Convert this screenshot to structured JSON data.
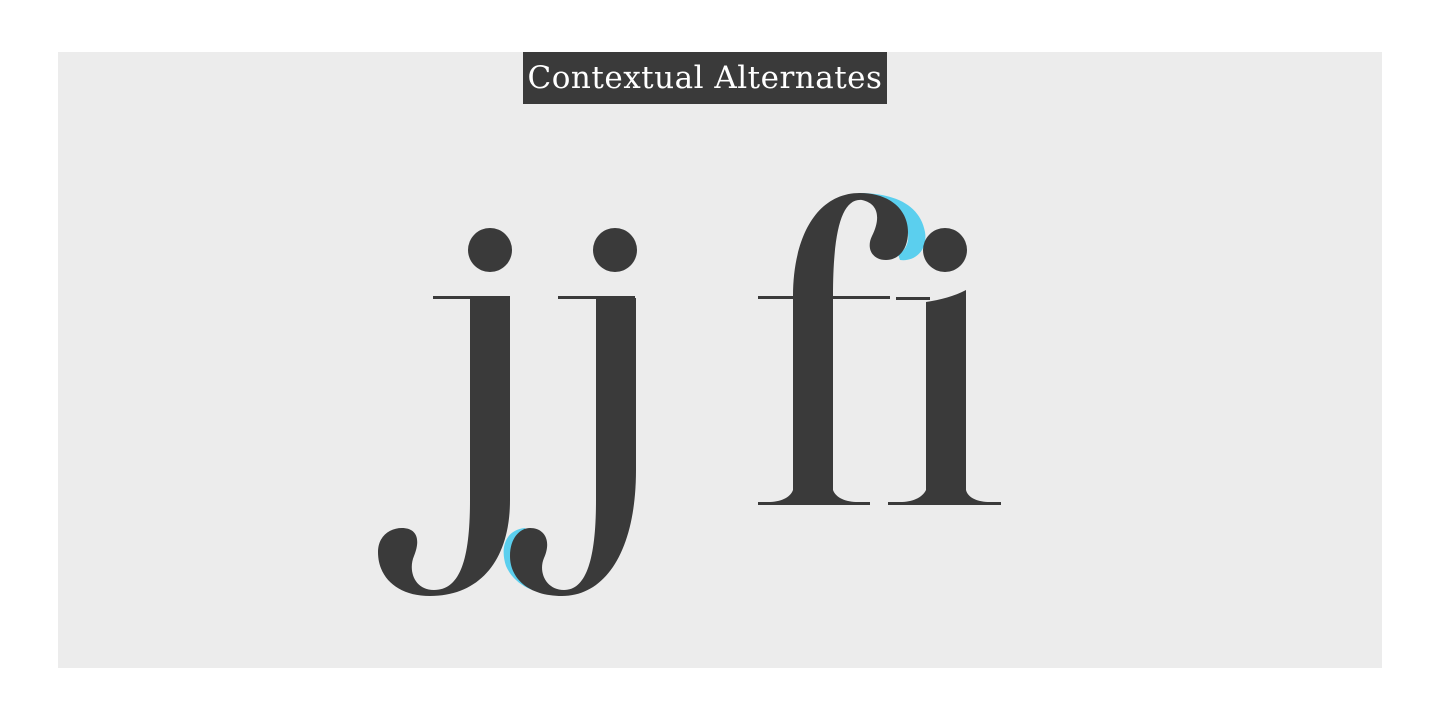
{
  "title": "Contextual Alternates",
  "glyph_pairs": [
    {
      "id": "jj",
      "glyphs": [
        "j",
        "j"
      ]
    },
    {
      "id": "fi",
      "glyphs": [
        "f",
        "i"
      ]
    }
  ],
  "colors": {
    "background": "#ffffff",
    "panel": "#ececec",
    "ink": "#3a3a3a",
    "accent": "#5bcfee",
    "label_text": "#ffffff"
  }
}
